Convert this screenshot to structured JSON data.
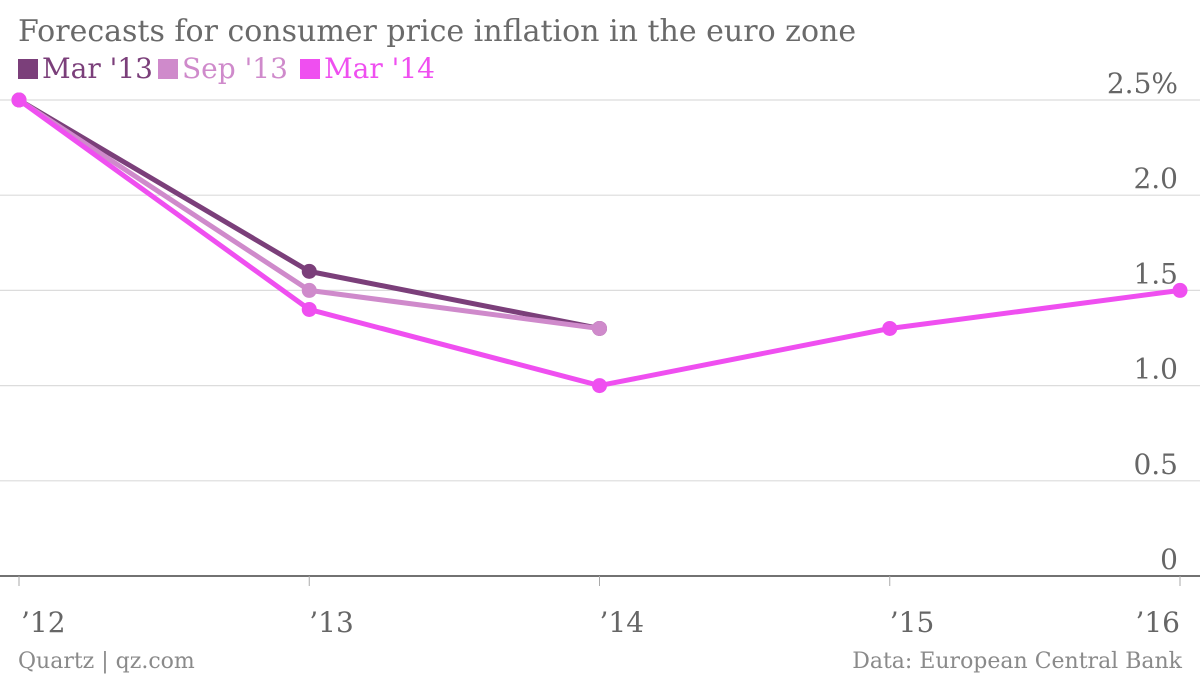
{
  "chart_data": {
    "type": "line",
    "title": "Forecasts for consumer price inflation in the euro zone",
    "x": [
      "’12",
      "’13",
      "’14",
      "’15",
      "’16"
    ],
    "y_ticks": [
      "2.5%",
      "2.0",
      "1.5",
      "1.0",
      "0.5",
      "0"
    ],
    "ylim": [
      0,
      2.5
    ],
    "grid": true,
    "legend_position": "top-left",
    "series": [
      {
        "name": "Mar '13",
        "color": "#7b3f7a",
        "values": [
          2.5,
          1.6,
          1.3,
          null,
          null
        ]
      },
      {
        "name": "Sep '13",
        "color": "#cf8acb",
        "values": [
          2.5,
          1.5,
          1.3,
          null,
          null
        ]
      },
      {
        "name": "Mar '14",
        "color": "#ef4ff0",
        "values": [
          2.5,
          1.4,
          1.0,
          1.3,
          1.5
        ]
      }
    ]
  },
  "footer": {
    "left": "Quartz | qz.com",
    "right": "Data: European Central Bank"
  }
}
